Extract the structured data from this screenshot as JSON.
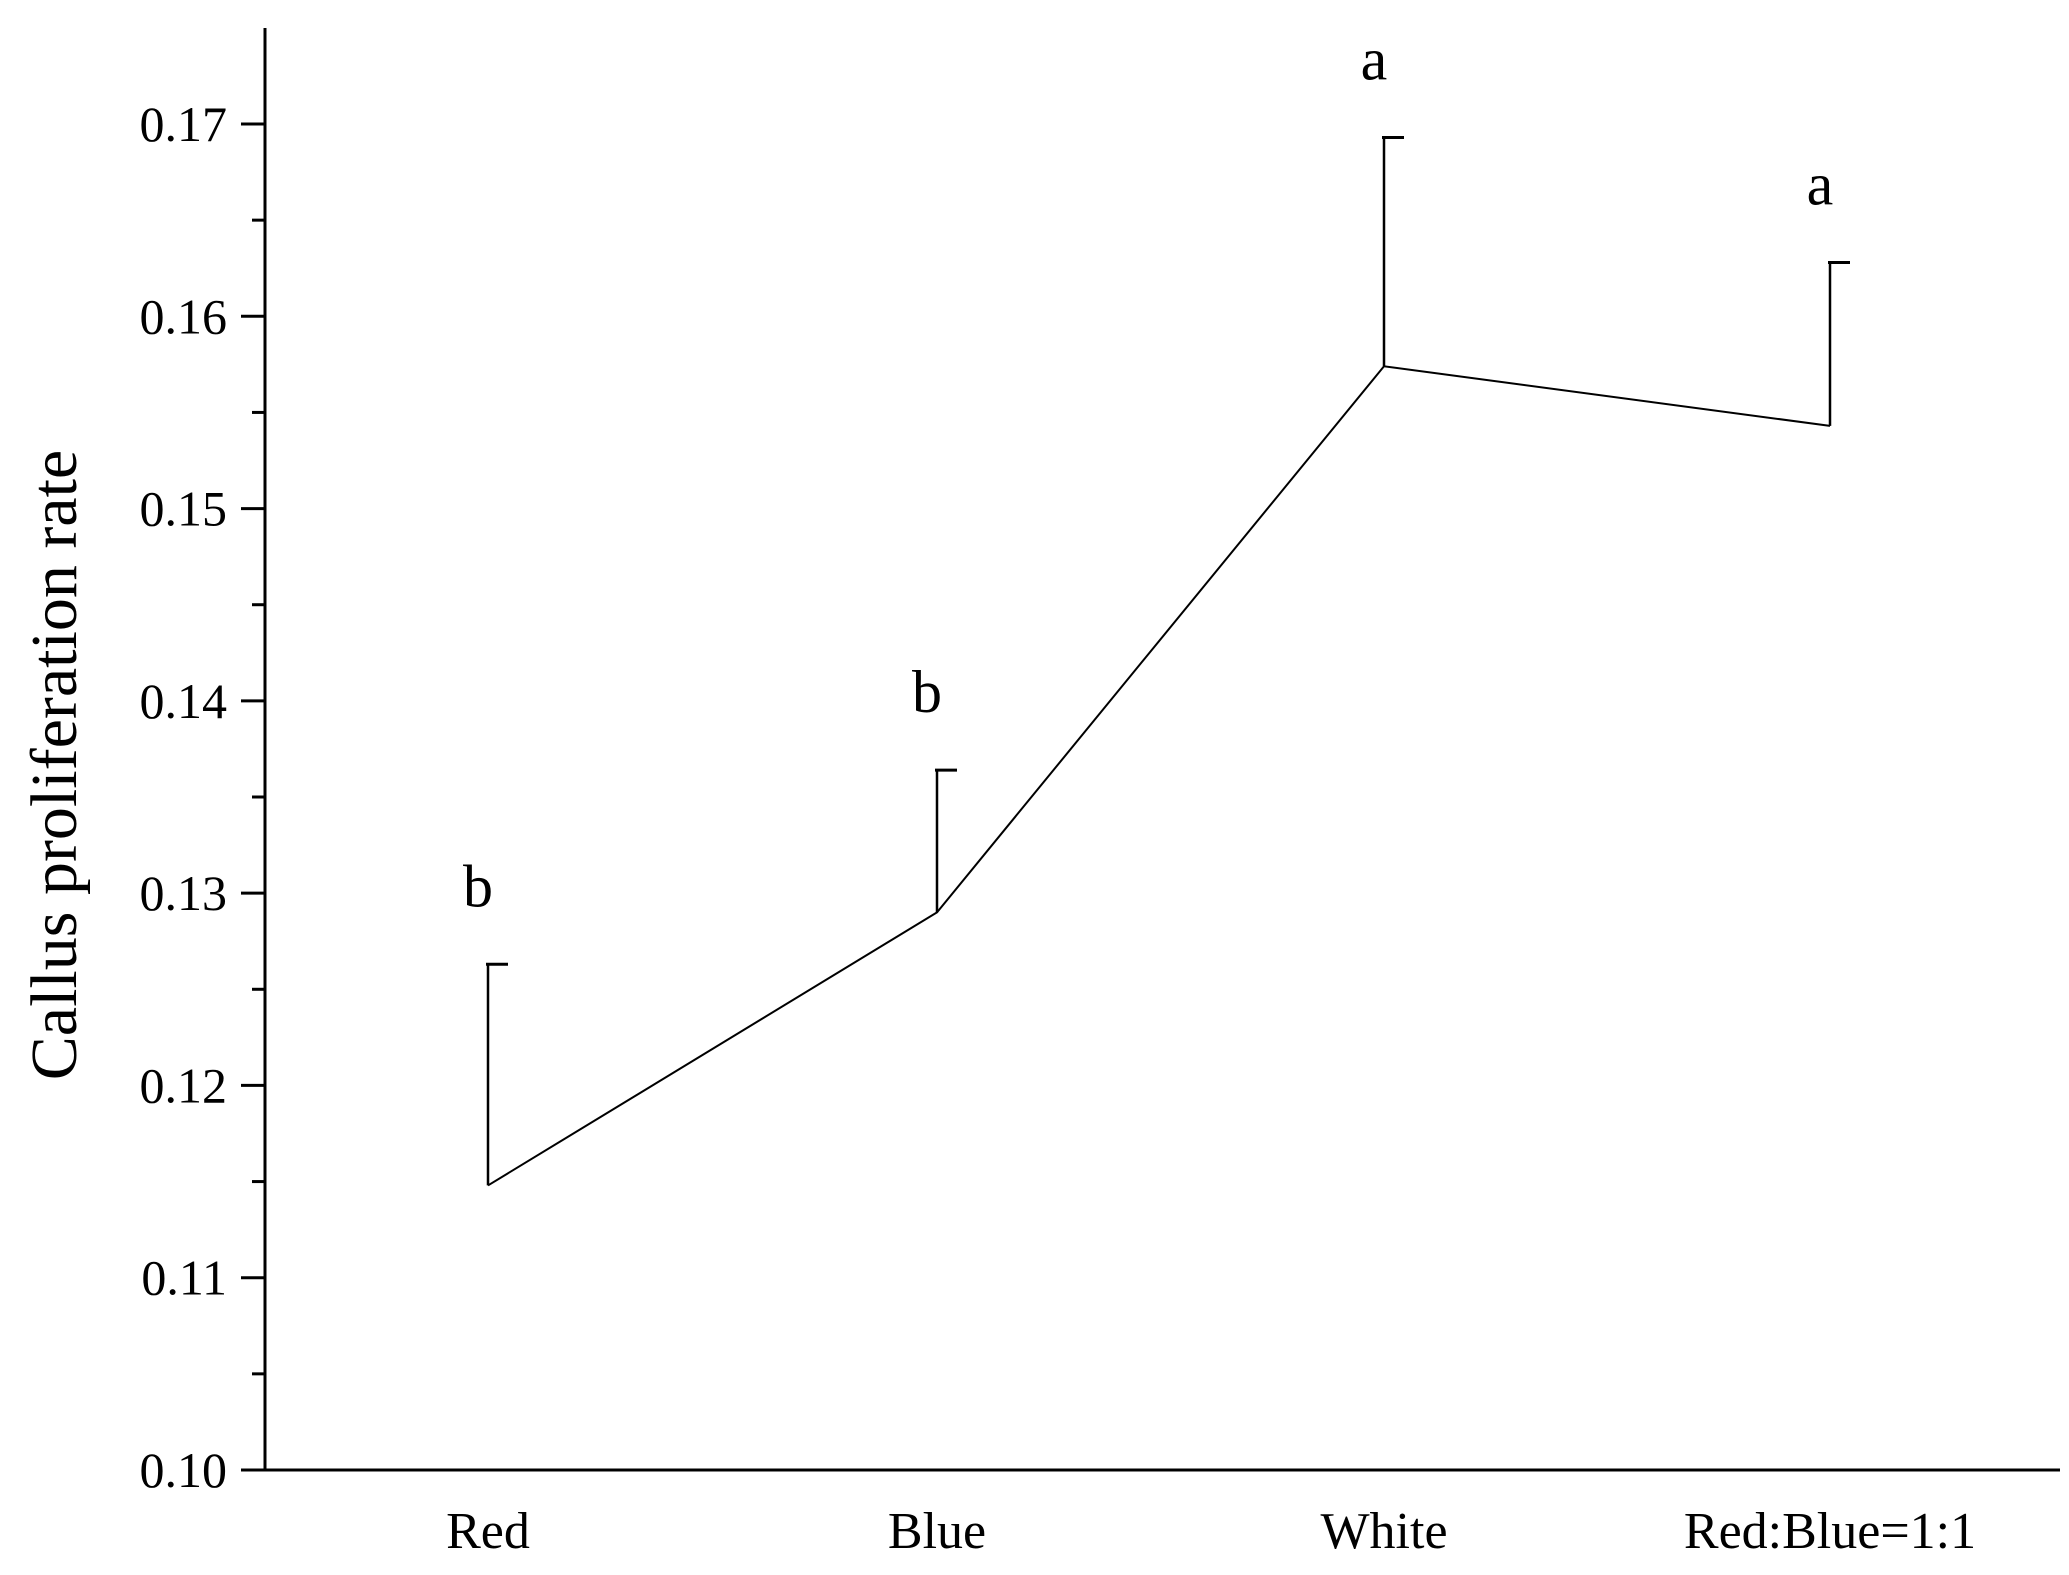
{
  "chart_data": {
    "type": "line",
    "title": "",
    "xlabel": "",
    "ylabel": "Callus proliferation rate",
    "categories": [
      "Red",
      "Blue",
      "White",
      "Red:Blue=1:1"
    ],
    "series": [
      {
        "values": [
          0.1148,
          0.129,
          0.1574,
          0.1543
        ],
        "error_upper": [
          0.0115,
          0.0074,
          0.0119,
          0.0085
        ],
        "significance": [
          "b",
          "b",
          "a",
          "a"
        ]
      }
    ],
    "ylim": [
      0.1,
      0.175
    ],
    "yticks": [
      "0.10",
      "0.11",
      "0.12",
      "0.13",
      "0.14",
      "0.15",
      "0.16",
      "0.17"
    ],
    "grid": false,
    "legend": "none",
    "line_color": "#000000"
  }
}
